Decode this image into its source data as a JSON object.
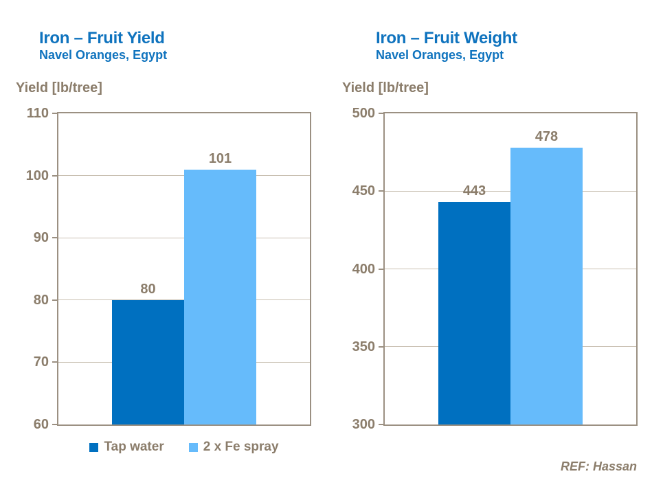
{
  "colors": {
    "heading_blue": "#0f73be",
    "axis_text_brown": "#8b7d6b",
    "frame_tan": "#9b9082",
    "gridline_tan": "#c9c0b2",
    "bar_dark_blue": "#0070c0",
    "bar_light_blue": "#66bbfb"
  },
  "chart_data": [
    {
      "type": "bar",
      "title": "Iron – Fruit Yield",
      "subtitle": "Navel Oranges, Egypt",
      "ylabel": "Yield [lb/tree]",
      "categories": [
        "Tap water",
        "2 x Fe spray"
      ],
      "values": [
        80,
        101
      ],
      "data_labels": [
        "80",
        "101"
      ],
      "ylim": [
        60,
        110
      ],
      "yticks": [
        60,
        70,
        80,
        90,
        100,
        110
      ],
      "grid": true,
      "legend_position": "bottom",
      "bar_colors": [
        "#0070c0",
        "#66bbfb"
      ]
    },
    {
      "type": "bar",
      "title": "Iron – Fruit Weight",
      "subtitle": "Navel Oranges, Egypt",
      "ylabel": "Yield [lb/tree]",
      "categories": [
        "Tap water",
        "2 x Fe spray"
      ],
      "values": [
        443,
        478
      ],
      "data_labels": [
        "443",
        "478"
      ],
      "ylim": [
        300,
        500
      ],
      "yticks": [
        300,
        350,
        400,
        450,
        500
      ],
      "grid": true,
      "legend_position": "none",
      "bar_colors": [
        "#0070c0",
        "#66bbfb"
      ]
    }
  ],
  "legend": {
    "items": [
      {
        "label": "Tap water",
        "color": "#0070c0"
      },
      {
        "label": "2 x Fe spray",
        "color": "#66bbfb"
      }
    ]
  },
  "footer": {
    "ref": "REF: Hassan"
  }
}
